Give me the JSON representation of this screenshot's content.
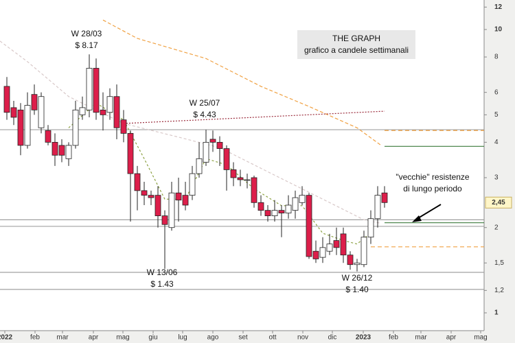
{
  "chart_data": {
    "type": "candlestick",
    "title": "THE GRAPH",
    "subtitle": "grafico a candele settimanali",
    "log_scale": true,
    "x": [
      0,
      1,
      2,
      3,
      4,
      5,
      6,
      7,
      8,
      9,
      10,
      11,
      12,
      13,
      14,
      15,
      16,
      17,
      18,
      19,
      20,
      21,
      22,
      23,
      24,
      25,
      26,
      27,
      28,
      29,
      30,
      31,
      32,
      33,
      34,
      35,
      36,
      37,
      38,
      39,
      40,
      41,
      42,
      43,
      44,
      45,
      46,
      47,
      48,
      49,
      50,
      51,
      52,
      53,
      54,
      55
    ],
    "open": [
      6.3,
      5.3,
      5.2,
      3.9,
      5.9,
      4.5,
      4.4,
      4.0,
      3.9,
      3.5,
      3.9,
      5.0,
      5.2,
      7.3,
      5.2,
      5.1,
      5.8,
      4.8,
      4.3,
      3.1,
      2.7,
      2.6,
      2.6,
      2.2,
      2.0,
      2.65,
      2.6,
      2.6,
      3.1,
      3.4,
      4.1,
      4.0,
      3.8,
      3.2,
      3.0,
      2.95,
      3.0,
      2.45,
      2.3,
      2.2,
      2.3,
      2.25,
      2.3,
      2.45,
      2.6,
      1.65,
      1.57,
      1.65,
      1.8,
      1.9,
      1.6,
      1.48,
      1.48,
      1.85,
      2.15,
      2.65
    ],
    "high": [
      6.8,
      5.6,
      5.5,
      6.0,
      6.4,
      6.0,
      4.6,
      4.3,
      4.1,
      4.0,
      5.6,
      5.8,
      8.17,
      7.9,
      6.0,
      6.2,
      6.4,
      5.2,
      4.4,
      3.3,
      2.9,
      2.7,
      2.8,
      2.3,
      2.9,
      3.0,
      2.9,
      3.3,
      4.0,
      4.43,
      4.4,
      4.2,
      3.9,
      3.4,
      3.2,
      3.1,
      3.05,
      2.6,
      2.4,
      2.5,
      2.4,
      2.6,
      2.7,
      2.8,
      2.65,
      1.8,
      1.85,
      1.9,
      2.0,
      2.0,
      1.65,
      1.55,
      1.95,
      2.3,
      2.8,
      2.8
    ],
    "low": [
      4.8,
      4.6,
      3.6,
      3.8,
      5.0,
      4.3,
      3.9,
      3.3,
      3.4,
      3.3,
      3.8,
      4.8,
      4.9,
      4.8,
      4.4,
      4.8,
      4.1,
      4.0,
      2.1,
      2.3,
      2.4,
      2.4,
      2.0,
      1.43,
      1.95,
      2.1,
      2.3,
      2.5,
      3.0,
      3.3,
      3.7,
      3.3,
      2.7,
      2.8,
      2.8,
      2.75,
      2.35,
      2.2,
      2.1,
      2.1,
      1.85,
      2.15,
      2.15,
      2.4,
      1.55,
      1.5,
      1.5,
      1.6,
      1.6,
      1.5,
      1.42,
      1.4,
      1.45,
      1.75,
      2.0,
      2.35
    ],
    "close": [
      5.1,
      4.9,
      3.9,
      5.4,
      5.2,
      5.8,
      4.0,
      3.6,
      3.6,
      3.9,
      5.2,
      5.3,
      7.3,
      5.1,
      5.0,
      5.8,
      4.5,
      4.3,
      3.1,
      2.7,
      2.6,
      2.55,
      2.2,
      2.05,
      2.65,
      2.5,
      2.4,
      3.1,
      3.5,
      4.0,
      4.0,
      3.8,
      3.2,
      3.0,
      2.95,
      2.95,
      2.45,
      2.3,
      2.2,
      2.3,
      2.25,
      2.4,
      2.55,
      2.6,
      1.58,
      1.55,
      1.7,
      1.75,
      1.7,
      1.6,
      1.48,
      1.5,
      1.85,
      2.15,
      2.6,
      2.45
    ],
    "up_color": "#ffffff",
    "down_color": "#dc1e4a",
    "xlim": [
      -1,
      69.5
    ],
    "ylim": [
      0.97,
      12.5
    ],
    "xticks": [
      {
        "value": -0.3,
        "label": "2022"
      },
      {
        "value": 4.1,
        "label": "feb"
      },
      {
        "value": 8.1,
        "label": "mar"
      },
      {
        "value": 12.6,
        "label": "apr"
      },
      {
        "value": 16.9,
        "label": "mag"
      },
      {
        "value": 21.3,
        "label": "giu"
      },
      {
        "value": 25.6,
        "label": "lug"
      },
      {
        "value": 30,
        "label": "ago"
      },
      {
        "value": 34.4,
        "label": "set"
      },
      {
        "value": 38.7,
        "label": "ott"
      },
      {
        "value": 43.1,
        "label": "nov"
      },
      {
        "value": 47.4,
        "label": "dic"
      },
      {
        "value": 51.9,
        "label": "2023"
      },
      {
        "value": 56.3,
        "label": "feb"
      },
      {
        "value": 60.3,
        "label": "mar"
      },
      {
        "value": 64.7,
        "label": "apr"
      },
      {
        "value": 69,
        "label": "mag"
      }
    ],
    "yticks": [
      1,
      {
        "value": 1.2,
        "label": "1,2"
      },
      {
        "value": 1.5,
        "label": "1,5"
      },
      2,
      3,
      4,
      5,
      6,
      8,
      10,
      12
    ],
    "overlays": [
      {
        "color": "#f0a040",
        "dash": "5 3",
        "x": [
          14,
          19,
          29,
          37,
          44,
          51,
          54.5
        ],
        "values": [
          10.8,
          9.3,
          7.9,
          6.3,
          5.35,
          4.5,
          3.9
        ]
      },
      {
        "color": "#d8c8c8",
        "dash": "4 3",
        "x": [
          -1,
          3,
          9,
          17,
          25,
          31,
          39,
          46,
          52,
          54.5
        ],
        "values": [
          9.1,
          7.7,
          5.8,
          4.66,
          4.17,
          3.83,
          3.06,
          2.52,
          2.13,
          2.07
        ]
      },
      {
        "color": "#8aa040",
        "dash": "3 3",
        "x": [
          9,
          13,
          17,
          20,
          23,
          26,
          29,
          32,
          36,
          40,
          43,
          46,
          49,
          51,
          53.5
        ],
        "values": [
          4.5,
          5.5,
          4.8,
          3.5,
          2.52,
          2.52,
          3.5,
          3.33,
          2.74,
          2.39,
          2.39,
          1.91,
          1.8,
          1.75,
          1.96
        ]
      },
      {
        "color": "#9a2a3a",
        "dash": "2 2",
        "x": [
          17,
          55
        ],
        "values": [
          4.66,
          5.15
        ]
      }
    ],
    "levels": [
      {
        "value": 4.43,
        "x": [
          -1,
          69.5
        ],
        "color": "#a0a0a0",
        "dash": "none"
      },
      {
        "value": 2.13,
        "x": [
          -1,
          69.5
        ],
        "color": "#a0a0a0",
        "dash": "none"
      },
      {
        "value": 2.02,
        "x": [
          -1,
          69.5
        ],
        "color": "#a0a0a0",
        "dash": "none"
      },
      {
        "value": 1.39,
        "x": [
          -1,
          69.5
        ],
        "color": "#a0a0a0",
        "dash": "none"
      },
      {
        "value": 1.21,
        "x": [
          -1,
          69.5
        ],
        "color": "#a0a0a0",
        "dash": "none"
      },
      {
        "value": 4.4,
        "x": [
          55,
          69.5
        ],
        "color": "#f0a040",
        "dash": "6 4"
      },
      {
        "value": 1.71,
        "x": [
          53,
          69.5
        ],
        "color": "#f0a040",
        "dash": "6 4"
      },
      {
        "value": 3.87,
        "x": [
          55,
          69.5
        ],
        "color": "#3a7a3a",
        "dash": "none"
      },
      {
        "value": 2.08,
        "x": [
          55,
          69.5
        ],
        "color": "#3a7a3a",
        "dash": "none"
      }
    ],
    "last_price": {
      "value": 2.45,
      "label": "2,45"
    },
    "annotations": [
      {
        "lines": [
          "W 28/03",
          "$ 8.17"
        ]
      },
      {
        "lines": [
          "W 25/07",
          "$ 4.43"
        ]
      },
      {
        "lines": [
          "W 13/06",
          "$ 1.43"
        ]
      },
      {
        "lines": [
          "W 26/12",
          "$ 1.40"
        ]
      },
      {
        "lines": [
          "\"vecchie\" resistenze",
          "di lungo periodo"
        ]
      }
    ]
  }
}
